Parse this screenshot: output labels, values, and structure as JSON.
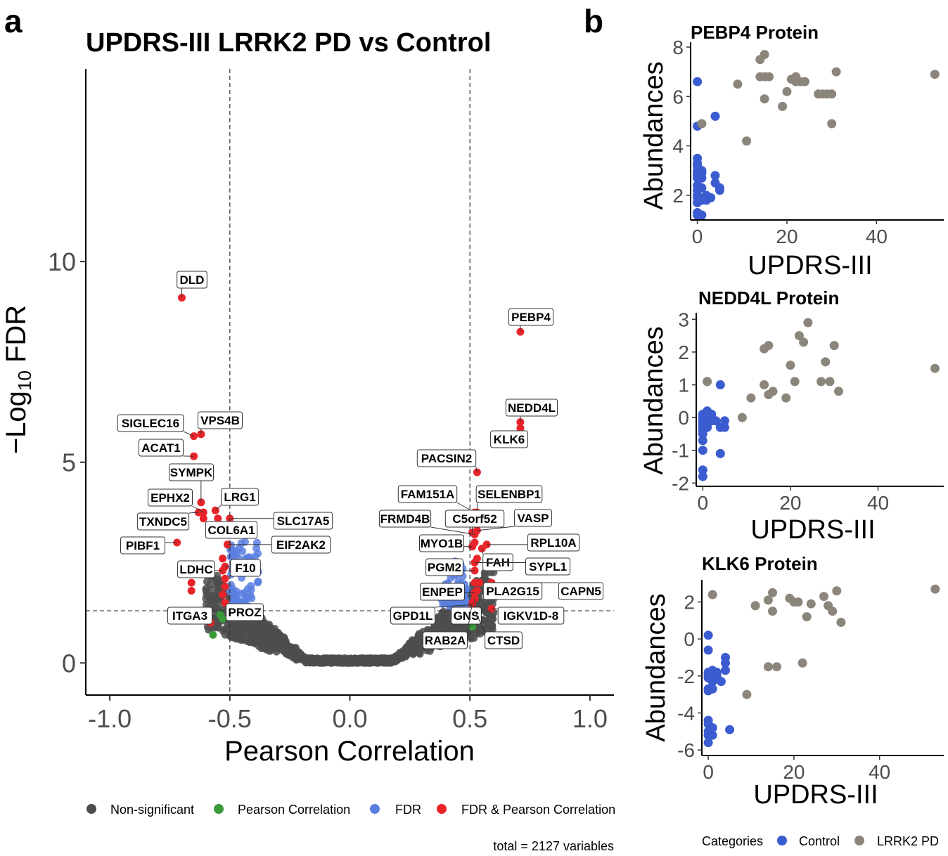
{
  "panel_a": {
    "letter": "a",
    "chart_data": {
      "type": "scatter",
      "title": "UPDRS-III LRRK2 PD vs Control",
      "xlabel": "Pearson Correlation",
      "ylabel_main": "−Log",
      "ylabel_sub": "10",
      "ylabel_end": " FDR",
      "xlim": [
        -1.1,
        1.1
      ],
      "ylim": [
        -0.8,
        14.8
      ],
      "x_ticks": [
        -1.0,
        -0.5,
        0.0,
        0.5,
        1.0
      ],
      "x_tick_labels": [
        "-1.0",
        "-0.5",
        "0.0",
        "0.5",
        "1.0"
      ],
      "y_ticks": [
        0,
        5,
        10
      ],
      "y_tick_labels": [
        "0",
        "5",
        "10"
      ],
      "thresholds": {
        "x": [
          -0.5,
          0.5
        ],
        "y": 1.3
      },
      "colors": {
        "Non-significant": "#4d4d4d",
        "Pearson Correlation": "#3a9a3a",
        "FDR": "#5b7fe0",
        "FDR & Pearson Correlation": "#e8242a"
      },
      "legend": [
        "Non-significant",
        "Pearson Correlation",
        "FDR",
        "FDR & Pearson Correlation"
      ],
      "caption": "total = 2127 variables",
      "labeled_points": [
        {
          "name": "DLD",
          "x": -0.7,
          "y": 9.1
        },
        {
          "name": "PEBP4",
          "x": 0.71,
          "y": 8.25
        },
        {
          "name": "NEDD4L",
          "x": 0.71,
          "y": 6.0
        },
        {
          "name": "KLK6",
          "x": 0.71,
          "y": 5.85
        },
        {
          "name": "VPS4B",
          "x": -0.62,
          "y": 5.7
        },
        {
          "name": "SIGLEC16",
          "x": -0.65,
          "y": 5.65
        },
        {
          "name": "ACAT1",
          "x": -0.65,
          "y": 5.15
        },
        {
          "name": "PACSIN2",
          "x": 0.53,
          "y": 4.75
        },
        {
          "name": "SYMPK",
          "x": -0.62,
          "y": 4.0
        },
        {
          "name": "LRG1",
          "x": -0.56,
          "y": 3.8
        },
        {
          "name": "EPHX2",
          "x": -0.61,
          "y": 3.75
        },
        {
          "name": "TXNDC5",
          "x": -0.63,
          "y": 3.75
        },
        {
          "name": "SELENBP1",
          "x": 0.53,
          "y": 3.75
        },
        {
          "name": "FAM151A",
          "x": 0.52,
          "y": 3.75
        },
        {
          "name": "COL6A1",
          "x": -0.52,
          "y": 3.3
        },
        {
          "name": "SLC17A5",
          "x": -0.5,
          "y": 3.6
        },
        {
          "name": "VASP",
          "x": 0.53,
          "y": 3.3
        },
        {
          "name": "C5orf52",
          "x": 0.51,
          "y": 3.25
        },
        {
          "name": "FRMD4B",
          "x": 0.52,
          "y": 3.2
        },
        {
          "name": "PIBF1",
          "x": -0.72,
          "y": 3.0
        },
        {
          "name": "EIF2AK2",
          "x": -0.51,
          "y": 2.95
        },
        {
          "name": "RPL10A",
          "x": 0.57,
          "y": 2.95
        },
        {
          "name": "MYO1B",
          "x": 0.51,
          "y": 2.9
        },
        {
          "name": "FAH",
          "x": 0.55,
          "y": 2.85
        },
        {
          "name": "SYPL1",
          "x": 0.52,
          "y": 2.5
        },
        {
          "name": "F10",
          "x": -0.52,
          "y": 2.4
        },
        {
          "name": "LDHC",
          "x": -0.53,
          "y": 2.3
        },
        {
          "name": "PGM2",
          "x": 0.52,
          "y": 2.3
        },
        {
          "name": "PLA2G15",
          "x": 0.54,
          "y": 2.0
        },
        {
          "name": "CAPN5",
          "x": 0.59,
          "y": 2.0
        },
        {
          "name": "ENPEP",
          "x": 0.52,
          "y": 1.75
        },
        {
          "name": "PROZ",
          "x": -0.52,
          "y": 1.5
        },
        {
          "name": "ITGA3",
          "x": -0.58,
          "y": 1.0
        },
        {
          "name": "GPD1L",
          "x": 0.51,
          "y": 1.45
        },
        {
          "name": "GNS",
          "x": 0.52,
          "y": 1.6
        },
        {
          "name": "IGKV1D-8",
          "x": 0.59,
          "y": 1.35
        },
        {
          "name": "RAB2A",
          "x": 0.51,
          "y": 1.5
        },
        {
          "name": "CTSD",
          "x": 0.52,
          "y": 1.3
        }
      ]
    }
  },
  "panel_b": {
    "letter": "b",
    "categories_title": "Categories",
    "legend": [
      "Control",
      "LRRK2 PD"
    ],
    "colors": {
      "Control": "#3b5bd0",
      "LRRK2 PD": "#8c857b"
    },
    "chart_data": [
      {
        "type": "scatter",
        "title": "PEBP4 Protein",
        "xlabel": "UPDRS-III",
        "ylabel": "Abundances",
        "xlim": [
          -1.5,
          55
        ],
        "ylim": [
          1.0,
          8.2
        ],
        "x_ticks": [
          0,
          20,
          40
        ],
        "y_ticks": [
          2,
          4,
          6,
          8
        ],
        "series": [
          {
            "name": "Control",
            "x": [
              0,
              0,
              0,
              0,
              0,
              0,
              0,
              0,
              0,
              0,
              0,
              0,
              0,
              0,
              0,
              1,
              1,
              1,
              1,
              1,
              2,
              2,
              3,
              4,
              4,
              4,
              5,
              5,
              0,
              1
            ],
            "y": [
              6.6,
              4.8,
              3.5,
              3.3,
              3.2,
              3.0,
              2.9,
              2.8,
              2.4,
              2.2,
              2.0,
              1.9,
              1.7,
              1.3,
              1.2,
              3.0,
              2.9,
              2.7,
              2.3,
              1.2,
              2.0,
              1.8,
              1.9,
              5.2,
              2.8,
              2.5,
              2.3,
              2.2,
              2.7,
              1.8
            ]
          },
          {
            "name": "LRRK2 PD",
            "x": [
              1,
              9,
              11,
              14,
              14,
              15,
              15,
              15,
              16,
              19,
              20,
              21,
              22,
              22,
              23,
              24,
              27,
              28,
              29,
              30,
              30,
              31,
              53
            ],
            "y": [
              4.9,
              6.5,
              4.2,
              7.5,
              6.8,
              7.7,
              6.8,
              5.9,
              6.8,
              5.6,
              6.2,
              6.7,
              6.6,
              6.8,
              6.6,
              6.6,
              6.1,
              6.1,
              6.1,
              4.9,
              6.1,
              7.0,
              6.9
            ]
          }
        ]
      },
      {
        "type": "scatter",
        "title": "NEDD4L Protein",
        "xlabel": "UPDRS-III",
        "ylabel": "Abundances",
        "xlim": [
          -1.5,
          55
        ],
        "ylim": [
          -2.1,
          3.2
        ],
        "x_ticks": [
          0,
          20,
          40
        ],
        "y_ticks": [
          -2,
          -1,
          0,
          1,
          2,
          3
        ],
        "series": [
          {
            "name": "Control",
            "x": [
              0,
              0,
              0,
              0,
              0,
              0,
              0,
              0,
              0,
              0,
              0,
              0,
              1,
              1,
              1,
              1,
              1,
              2,
              2,
              3,
              4,
              4,
              4,
              5,
              5
            ],
            "y": [
              -1.6,
              -1.8,
              -1.0,
              -0.7,
              -0.5,
              -0.4,
              -0.3,
              -0.2,
              -0.1,
              0.0,
              0.1,
              0.0,
              0.2,
              0.0,
              -0.3,
              -0.1,
              -0.2,
              -0.1,
              0.1,
              -0.1,
              1.0,
              -0.3,
              -1.1,
              -0.1,
              -0.3
            ]
          },
          {
            "name": "LRRK2 PD",
            "x": [
              1,
              9,
              11,
              14,
              14,
              15,
              15,
              16,
              19,
              20,
              21,
              22,
              23,
              24,
              27,
              28,
              29,
              30,
              31,
              53
            ],
            "y": [
              1.1,
              0.0,
              0.6,
              2.1,
              1.0,
              2.2,
              0.7,
              0.8,
              0.6,
              1.6,
              1.1,
              2.5,
              2.3,
              2.9,
              1.1,
              1.7,
              1.1,
              2.2,
              0.8,
              1.5
            ]
          }
        ]
      },
      {
        "type": "scatter",
        "title": "KLK6 Protein",
        "xlabel": "UPDRS-III",
        "ylabel": "Abundances",
        "xlim": [
          -1.5,
          55
        ],
        "ylim": [
          -6.3,
          3.2
        ],
        "x_ticks": [
          0,
          20,
          40
        ],
        "y_ticks": [
          -6,
          -4,
          -2,
          0,
          2
        ],
        "series": [
          {
            "name": "Control",
            "x": [
              0,
              0,
              0,
              0,
              0,
              0,
              0,
              0,
              0,
              0,
              0,
              0,
              0,
              1,
              1,
              1,
              1,
              1,
              1,
              2,
              2,
              3,
              4,
              4,
              4,
              5
            ],
            "y": [
              0.2,
              -0.6,
              -1.8,
              -2.0,
              -2.1,
              -2.7,
              -4.4,
              -4.6,
              -5.0,
              -5.2,
              -5.6,
              -2.8,
              -1.9,
              -1.7,
              -2.3,
              -2.7,
              -4.8,
              -5.2,
              -2.1,
              -1.8,
              -2.0,
              -2.3,
              -1.0,
              -1.3,
              -1.7,
              -4.9
            ]
          },
          {
            "name": "LRRK2 PD",
            "x": [
              1,
              9,
              11,
              14,
              14,
              15,
              15,
              16,
              19,
              20,
              21,
              22,
              23,
              24,
              27,
              28,
              29,
              30,
              31,
              53
            ],
            "y": [
              2.4,
              -3.0,
              1.8,
              2.1,
              -1.5,
              1.5,
              2.5,
              -1.5,
              2.2,
              2.0,
              2.0,
              -1.3,
              1.2,
              1.9,
              2.3,
              1.8,
              1.5,
              2.6,
              0.9,
              2.7
            ]
          }
        ]
      }
    ]
  }
}
